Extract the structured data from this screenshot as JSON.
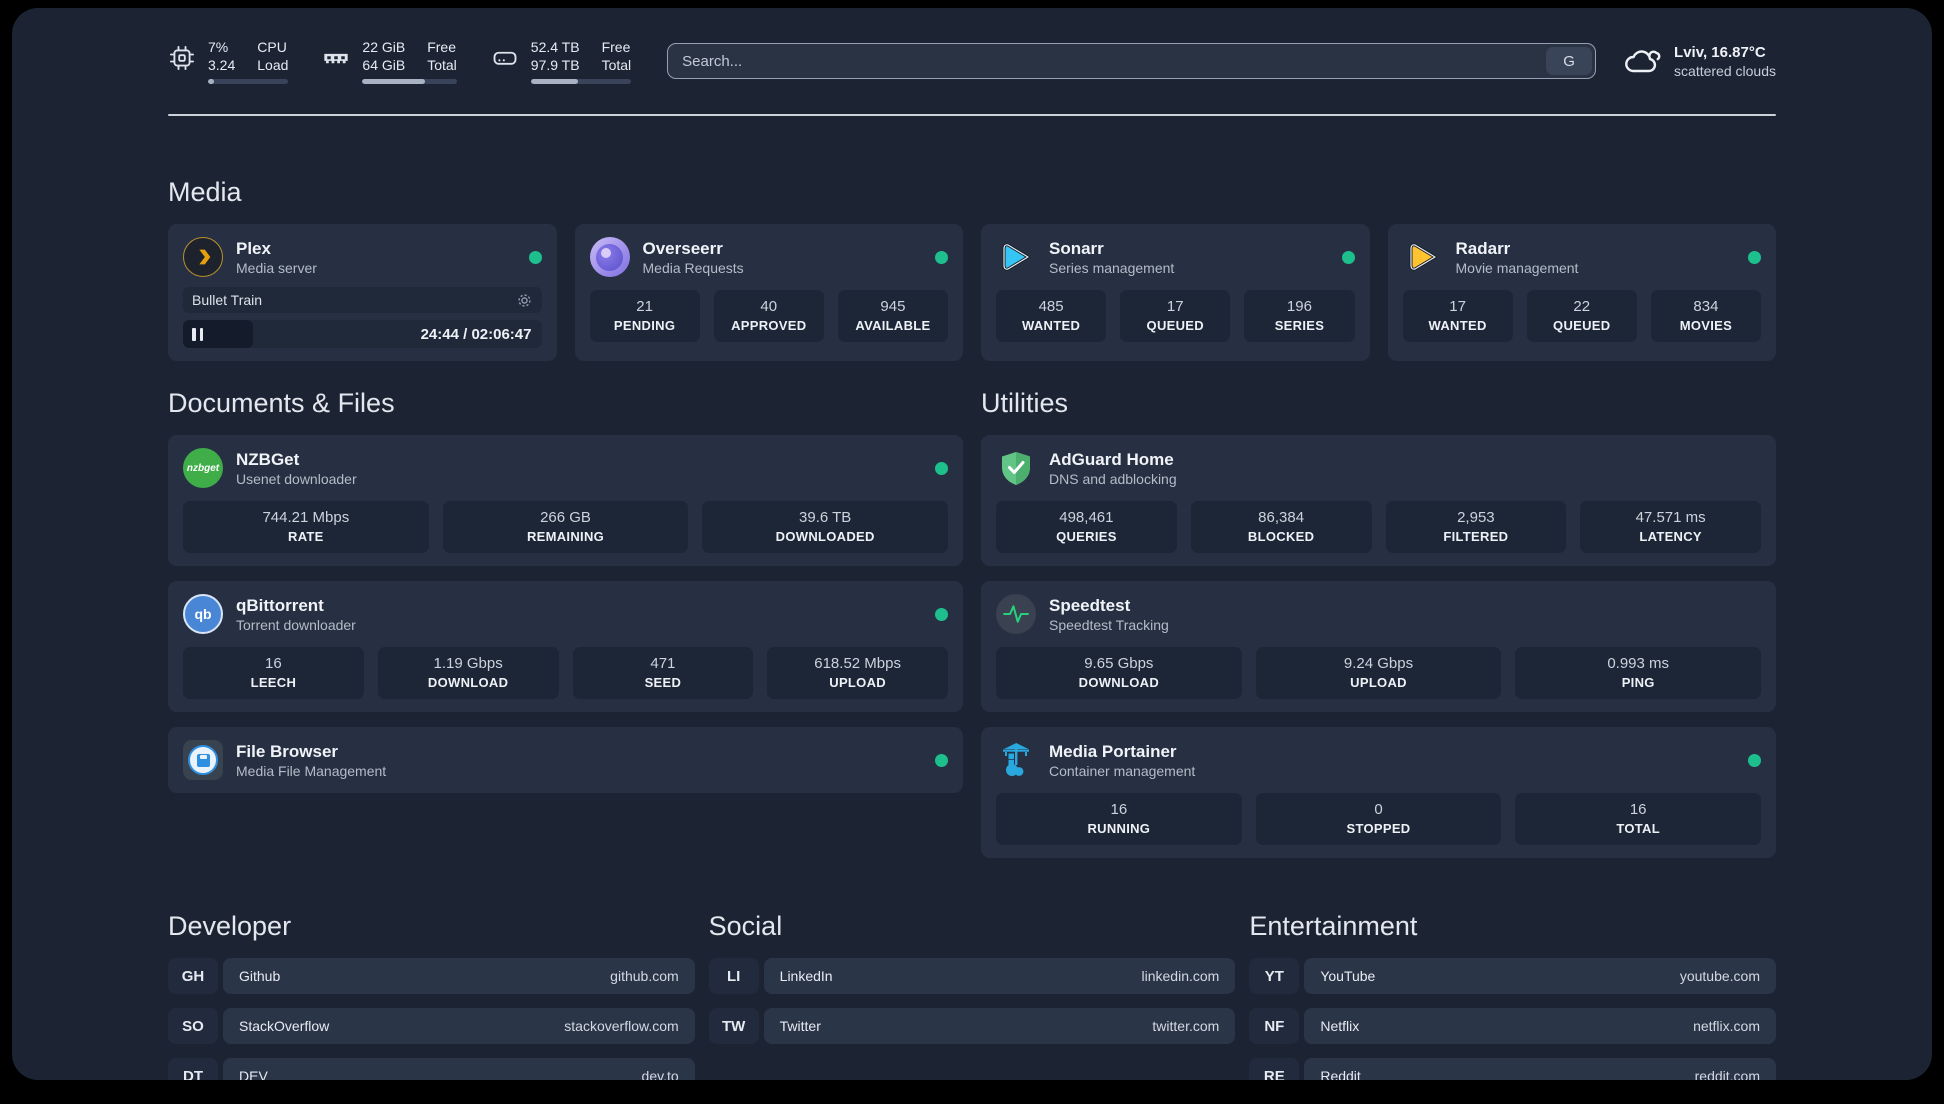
{
  "header": {
    "cpu": {
      "value_top": "7%",
      "value_bottom": "3.24",
      "label_top": "CPU",
      "label_bottom": "Load",
      "percent": 7
    },
    "ram": {
      "value_top": "22 GiB",
      "value_bottom": "64 GiB",
      "label_top": "Free",
      "label_bottom": "Total",
      "percent": 66
    },
    "disk": {
      "value_top": "52.4 TB",
      "value_bottom": "97.9 TB",
      "label_top": "Free",
      "label_bottom": "Total",
      "percent": 47
    },
    "search": {
      "placeholder": "Search...",
      "engine": "G"
    },
    "weather": {
      "location": "Lviv, 16.87°C",
      "condition": "scattered clouds"
    }
  },
  "sections": {
    "media": "Media",
    "documents": "Documents & Files",
    "utilities": "Utilities",
    "developer": "Developer",
    "social": "Social",
    "entertainment": "Entertainment"
  },
  "apps": {
    "plex": {
      "name": "Plex",
      "desc": "Media server",
      "player": {
        "title": "Bullet Train",
        "time": "24:44 / 02:06:47",
        "progress_percent": 19.5
      }
    },
    "overseerr": {
      "name": "Overseerr",
      "desc": "Media Requests",
      "stats": [
        {
          "value": "21",
          "label": "PENDING"
        },
        {
          "value": "40",
          "label": "APPROVED"
        },
        {
          "value": "945",
          "label": "AVAILABLE"
        }
      ]
    },
    "sonarr": {
      "name": "Sonarr",
      "desc": "Series management",
      "stats": [
        {
          "value": "485",
          "label": "WANTED"
        },
        {
          "value": "17",
          "label": "QUEUED"
        },
        {
          "value": "196",
          "label": "SERIES"
        }
      ]
    },
    "radarr": {
      "name": "Radarr",
      "desc": "Movie management",
      "stats": [
        {
          "value": "17",
          "label": "WANTED"
        },
        {
          "value": "22",
          "label": "QUEUED"
        },
        {
          "value": "834",
          "label": "MOVIES"
        }
      ]
    },
    "nzbget": {
      "name": "NZBGet",
      "desc": "Usenet downloader",
      "icon_text": "nzbget",
      "stats": [
        {
          "value": "744.21 Mbps",
          "label": "RATE"
        },
        {
          "value": "266 GB",
          "label": "REMAINING"
        },
        {
          "value": "39.6 TB",
          "label": "DOWNLOADED"
        }
      ]
    },
    "qbittorrent": {
      "name": "qBittorrent",
      "desc": "Torrent downloader",
      "icon_text": "qb",
      "stats": [
        {
          "value": "16",
          "label": "LEECH"
        },
        {
          "value": "1.19 Gbps",
          "label": "DOWNLOAD"
        },
        {
          "value": "471",
          "label": "SEED"
        },
        {
          "value": "618.52 Mbps",
          "label": "UPLOAD"
        }
      ]
    },
    "filebrowser": {
      "name": "File Browser",
      "desc": "Media File Management"
    },
    "adguard": {
      "name": "AdGuard Home",
      "desc": "DNS and adblocking",
      "stats": [
        {
          "value": "498,461",
          "label": "QUERIES"
        },
        {
          "value": "86,384",
          "label": "BLOCKED"
        },
        {
          "value": "2,953",
          "label": "FILTERED"
        },
        {
          "value": "47.571 ms",
          "label": "LATENCY"
        }
      ]
    },
    "speedtest": {
      "name": "Speedtest",
      "desc": "Speedtest Tracking",
      "stats": [
        {
          "value": "9.65 Gbps",
          "label": "DOWNLOAD"
        },
        {
          "value": "9.24 Gbps",
          "label": "UPLOAD"
        },
        {
          "value": "0.993 ms",
          "label": "PING"
        }
      ]
    },
    "portainer": {
      "name": "Media Portainer",
      "desc": "Container management",
      "stats": [
        {
          "value": "16",
          "label": "RUNNING"
        },
        {
          "value": "0",
          "label": "STOPPED"
        },
        {
          "value": "16",
          "label": "TOTAL"
        }
      ]
    }
  },
  "links": {
    "developer": [
      {
        "abbr": "GH",
        "name": "Github",
        "url": "github.com"
      },
      {
        "abbr": "SO",
        "name": "StackOverflow",
        "url": "stackoverflow.com"
      },
      {
        "abbr": "DT",
        "name": "DEV",
        "url": "dev.to"
      }
    ],
    "social": [
      {
        "abbr": "LI",
        "name": "LinkedIn",
        "url": "linkedin.com"
      },
      {
        "abbr": "TW",
        "name": "Twitter",
        "url": "twitter.com"
      }
    ],
    "entertainment": [
      {
        "abbr": "YT",
        "name": "YouTube",
        "url": "youtube.com"
      },
      {
        "abbr": "NF",
        "name": "Netflix",
        "url": "netflix.com"
      },
      {
        "abbr": "RE",
        "name": "Reddit",
        "url": "reddit.com"
      }
    ]
  },
  "colors": {
    "status_online": "#1dbf8d",
    "accent_plex": "#e5a00d",
    "accent_sonarr": "#35c5f4",
    "accent_radarr": "#ffc230"
  }
}
